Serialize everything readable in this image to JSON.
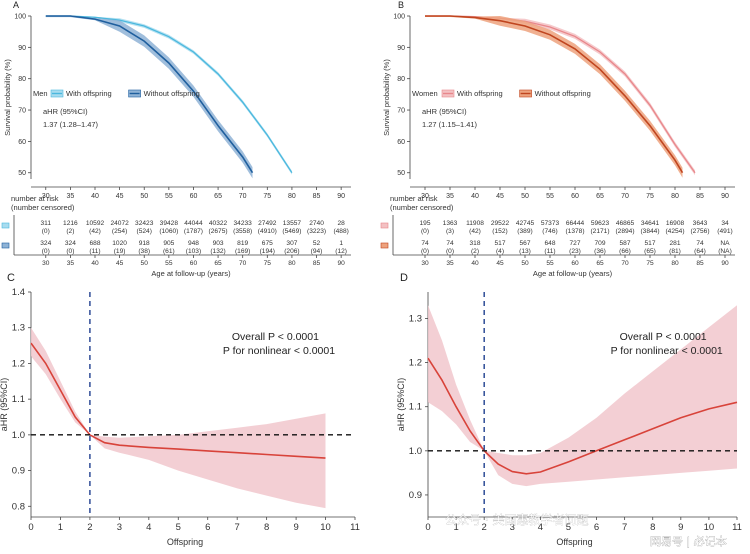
{
  "panels": [
    {
      "letter": "A",
      "type": "km",
      "ylabel": "Survival probability (%)",
      "xticks": [
        "30",
        "35",
        "40",
        "45",
        "50",
        "55",
        "60",
        "65",
        "70",
        "75",
        "80",
        "85",
        "90"
      ],
      "yticks": [
        "50",
        "60",
        "70",
        "80",
        "90",
        "100"
      ],
      "xlim": [
        27,
        92
      ],
      "ylim": [
        48,
        100
      ],
      "legend_group": "Men",
      "legend_items": [
        "With offspring",
        "Without offspring"
      ],
      "colors": {
        "with": "#4bb8de",
        "without": "#1f5f9e",
        "with_band": "#a8dcef",
        "without_band": "#8fb3d6"
      },
      "ahr_title": "aHR (95%CI)",
      "ahr_value": "1.37 (1.28–1.47)",
      "curves": [
        {
          "name": "With offspring",
          "x": [
            30,
            35,
            40,
            45,
            50,
            55,
            60,
            65,
            70,
            75,
            80
          ],
          "y": [
            100,
            100,
            99.6,
            98.7,
            96.8,
            93.4,
            88.5,
            81.5,
            72.5,
            62,
            50
          ],
          "band": 0.6
        },
        {
          "name": "Without offspring",
          "x": [
            30,
            35,
            40,
            45,
            50,
            55,
            60,
            65,
            70,
            72
          ],
          "y": [
            100,
            100,
            99,
            96.8,
            92,
            85,
            76,
            65,
            55,
            50
          ],
          "band": 1.8
        }
      ],
      "risk_title": "number at risk",
      "risk_subtitle": "(number censored)",
      "risk_rows": [
        {
          "counts": [
            "311",
            "1216",
            "10592",
            "24072",
            "32423",
            "39428",
            "44044",
            "40322",
            "34233",
            "27492",
            "13557",
            "2740",
            "28"
          ],
          "censored": [
            "(0)",
            "(2)",
            "(42)",
            "(254)",
            "(524)",
            "(1060)",
            "(1787)",
            "(2675)",
            "(3558)",
            "(4910)",
            "(5469)",
            "(3223)",
            "(488)"
          ]
        },
        {
          "counts": [
            "324",
            "324",
            "688",
            "1020",
            "918",
            "905",
            "948",
            "903",
            "819",
            "675",
            "307",
            "52",
            "1"
          ],
          "censored": [
            "(0)",
            "(0)",
            "(11)",
            "(19)",
            "(38)",
            "(61)",
            "(103)",
            "(132)",
            "(169)",
            "(194)",
            "(206)",
            "(94)",
            "(12)"
          ]
        }
      ],
      "risk_xlabel": "Age at follow-up (years)"
    },
    {
      "letter": "B",
      "type": "km",
      "ylabel": "Survival probability (%)",
      "xticks": [
        "30",
        "35",
        "40",
        "45",
        "50",
        "55",
        "60",
        "65",
        "70",
        "75",
        "80",
        "85",
        "90"
      ],
      "yticks": [
        "50",
        "60",
        "70",
        "80",
        "90",
        "100"
      ],
      "xlim": [
        27,
        92
      ],
      "ylim": [
        48,
        100
      ],
      "legend_group": "Women",
      "legend_items": [
        "With offspring",
        "Without offspring"
      ],
      "colors": {
        "with": "#e8878b",
        "without": "#c0451f",
        "with_band": "#f3c1c3",
        "without_band": "#eda27e"
      },
      "ahr_title": "aHR (95%CI)",
      "ahr_value": "1.27 (1.15–1.41)",
      "curves": [
        {
          "name": "With offspring",
          "x": [
            30,
            35,
            40,
            45,
            50,
            55,
            60,
            65,
            70,
            75,
            80,
            84
          ],
          "y": [
            100,
            100,
            99.8,
            99.3,
            98.3,
            96.5,
            93.5,
            88.5,
            81.5,
            71.5,
            59,
            50
          ],
          "band": 0.8
        },
        {
          "name": "Without offspring",
          "x": [
            30,
            35,
            40,
            45,
            50,
            55,
            60,
            65,
            70,
            75,
            80,
            81.5
          ],
          "y": [
            100,
            100,
            99.5,
            98.5,
            96.8,
            94,
            89.5,
            83,
            74.5,
            65,
            54,
            50
          ],
          "band": 1.6
        }
      ],
      "risk_title": "number at risk",
      "risk_subtitle": "(number censored)",
      "risk_rows": [
        {
          "counts": [
            "195",
            "1363",
            "11908",
            "29522",
            "42745",
            "57373",
            "66444",
            "59623",
            "46865",
            "34641",
            "16908",
            "3643",
            "34"
          ],
          "censored": [
            "(0)",
            "(3)",
            "(42)",
            "(152)",
            "(389)",
            "(746)",
            "(1378)",
            "(2171)",
            "(2894)",
            "(3844)",
            "(4254)",
            "(2756)",
            "(491)"
          ]
        },
        {
          "counts": [
            "74",
            "74",
            "318",
            "517",
            "567",
            "648",
            "727",
            "709",
            "587",
            "517",
            "281",
            "74",
            "NA"
          ],
          "censored": [
            "(0)",
            "(0)",
            "(2)",
            "(4)",
            "(13)",
            "(11)",
            "(23)",
            "(36)",
            "(66)",
            "(65)",
            "(81)",
            "(64)",
            "(NA)"
          ]
        }
      ],
      "risk_xlabel": "Age at follow-up (years)"
    },
    {
      "letter": "C",
      "type": "spline",
      "ylabel": "aHR (95%CI)",
      "xlabel": "Offspring",
      "xticks": [
        "0",
        "1",
        "2",
        "3",
        "4",
        "5",
        "6",
        "7",
        "8",
        "9",
        "10",
        "11"
      ],
      "yticks": [
        "0.8",
        "0.9",
        "1.0",
        "1.1",
        "1.2",
        "1.3",
        "1.4"
      ],
      "xlim": [
        0,
        11
      ],
      "ylim": [
        0.77,
        1.4
      ],
      "annotation_1": "Overall P < 0.0001",
      "annotation_2": "P for nonlinear < 0.0001",
      "ref_x": 2,
      "ref_y": 1.0,
      "colors": {
        "line": "#d8433a",
        "band": "#f1c7cc"
      },
      "curve": {
        "x": [
          0,
          0.5,
          1,
          1.5,
          2,
          2.5,
          3,
          4,
          5,
          6,
          7,
          8,
          9,
          10
        ],
        "y": [
          1.257,
          1.2,
          1.125,
          1.05,
          1.0,
          0.978,
          0.971,
          0.965,
          0.96,
          0.955,
          0.95,
          0.945,
          0.94,
          0.935
        ],
        "lo": [
          1.22,
          1.17,
          1.1,
          1.035,
          1.0,
          0.962,
          0.95,
          0.93,
          0.9,
          0.875,
          0.85,
          0.83,
          0.81,
          0.795
        ],
        "hi": [
          1.3,
          1.235,
          1.15,
          1.065,
          1.0,
          0.995,
          0.992,
          0.996,
          1.0,
          1.01,
          1.02,
          1.03,
          1.045,
          1.06
        ]
      }
    },
    {
      "letter": "D",
      "type": "spline",
      "ylabel": "aHR (95%CI)",
      "xlabel": "Offspring",
      "xticks": [
        "0",
        "1",
        "2",
        "3",
        "4",
        "5",
        "6",
        "7",
        "8",
        "9",
        "10",
        "11"
      ],
      "yticks": [
        "0.9",
        "1.0",
        "1.1",
        "1.2",
        "1.3"
      ],
      "xlim": [
        0,
        11
      ],
      "ylim": [
        0.85,
        1.36
      ],
      "annotation_1": "Overall P < 0.0001",
      "annotation_2": "P for nonlinear < 0.0001",
      "ref_x": 2,
      "ref_y": 1.0,
      "colors": {
        "line": "#d8433a",
        "band": "#f1c7cc"
      },
      "curve": {
        "x": [
          0,
          0.5,
          1,
          1.5,
          2,
          2.5,
          3,
          3.5,
          4,
          5,
          6,
          7,
          8,
          9,
          10,
          11
        ],
        "y": [
          1.21,
          1.16,
          1.1,
          1.045,
          1.0,
          0.97,
          0.953,
          0.948,
          0.952,
          0.975,
          1.0,
          1.025,
          1.05,
          1.075,
          1.095,
          1.11
        ],
        "lo": [
          1.11,
          1.09,
          1.06,
          1.02,
          1.0,
          0.945,
          0.925,
          0.92,
          0.925,
          0.93,
          0.935,
          0.94,
          0.945,
          0.95,
          0.955,
          0.96
        ],
        "hi": [
          1.33,
          1.25,
          1.15,
          1.07,
          1.0,
          0.995,
          0.99,
          0.99,
          0.995,
          1.03,
          1.075,
          1.13,
          1.18,
          1.23,
          1.28,
          1.33
        ]
      }
    }
  ],
  "watermark": "公众号 · 美国惠教学者问题",
  "watermark_2": "网易号 | 必记本"
}
